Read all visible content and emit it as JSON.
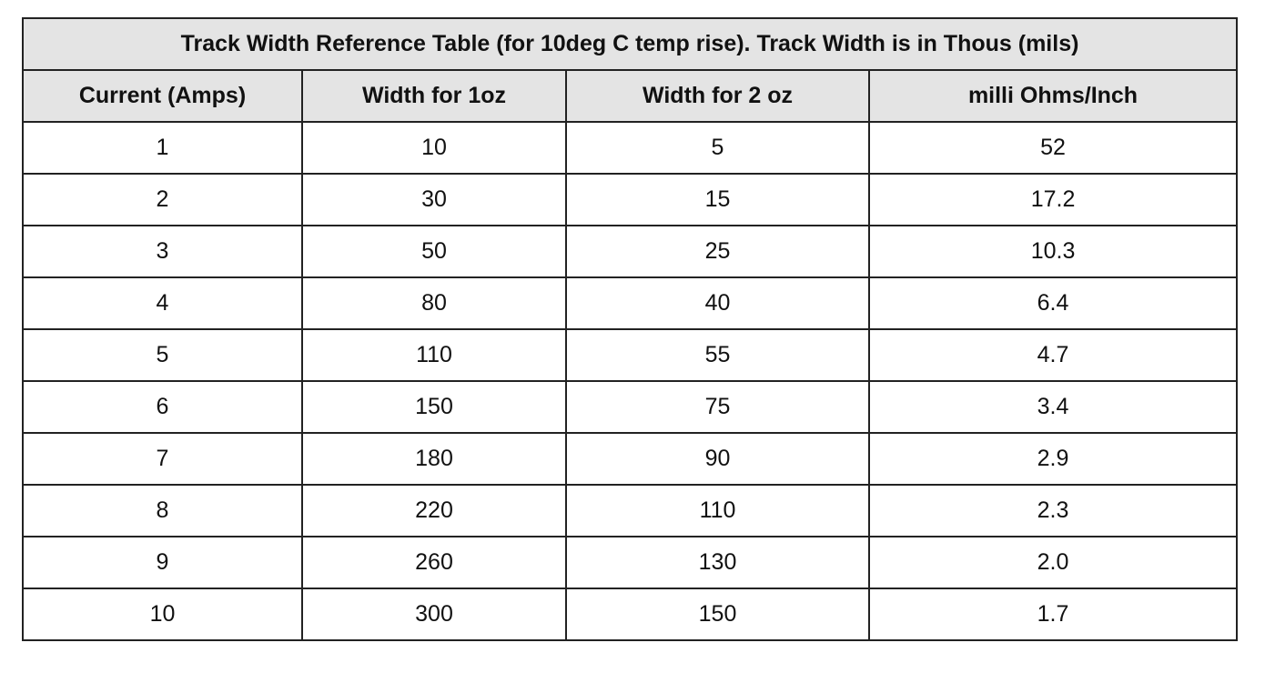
{
  "table": {
    "title": "Track Width Reference Table (for 10deg C temp rise). Track Width is in Thous (mils)",
    "headers": [
      "Current (Amps)",
      "Width for 1oz",
      "Width for 2 oz",
      "milli Ohms/Inch"
    ],
    "rows": [
      [
        "1",
        "10",
        "5",
        "52"
      ],
      [
        "2",
        "30",
        "15",
        "17.2"
      ],
      [
        "3",
        "50",
        "25",
        "10.3"
      ],
      [
        "4",
        "80",
        "40",
        "6.4"
      ],
      [
        "5",
        "110",
        "55",
        "4.7"
      ],
      [
        "6",
        "150",
        "75",
        "3.4"
      ],
      [
        "7",
        "180",
        "90",
        "2.9"
      ],
      [
        "8",
        "220",
        "110",
        "2.3"
      ],
      [
        "9",
        "260",
        "130",
        "2.0"
      ],
      [
        "10",
        "300",
        "150",
        "1.7"
      ]
    ]
  },
  "colors": {
    "header_background": "#e4e4e4",
    "border": "#222222",
    "text": "#111111"
  }
}
